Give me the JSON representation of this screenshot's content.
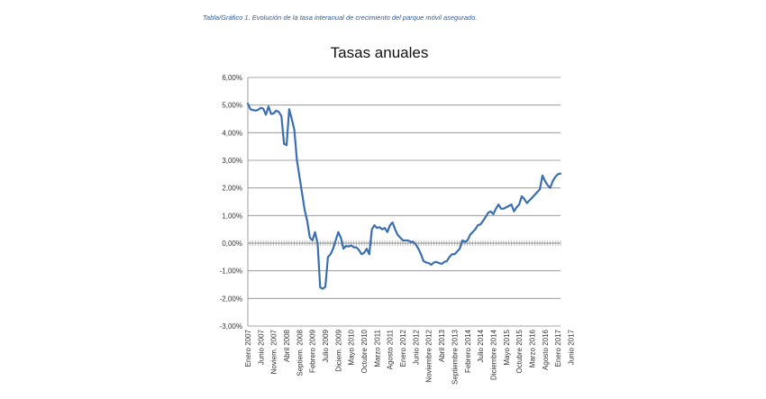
{
  "caption": "Tabla/Gráfico 1. Evolución de la tasa interanual de crecimiento del parque móvil asegurado.",
  "chart_data": {
    "type": "line",
    "title": "Tasas anuales",
    "xlabel": "",
    "ylabel": "",
    "ylim": [
      -0.03,
      0.06
    ],
    "yticks": [
      -0.03,
      -0.02,
      -0.01,
      0.0,
      0.01,
      0.02,
      0.03,
      0.04,
      0.05,
      0.06
    ],
    "ytick_labels": [
      "-3,00%",
      "-2,00%",
      "-1,00%",
      "0,00%",
      "1,00%",
      "2,00%",
      "3,00%",
      "4,00%",
      "5,00%",
      "6,00%"
    ],
    "grid": true,
    "line_color": "#3a6fb0",
    "x_labels": [
      {
        "index": 0,
        "label": "Enero 2007"
      },
      {
        "index": 5,
        "label": "Junio 2007"
      },
      {
        "index": 10,
        "label": "Noviem. 2007"
      },
      {
        "index": 15,
        "label": "Abril 2008"
      },
      {
        "index": 20,
        "label": "Septiem. 2008"
      },
      {
        "index": 25,
        "label": "Febrero 2009"
      },
      {
        "index": 30,
        "label": "Julio 2009"
      },
      {
        "index": 35,
        "label": "Diciem. 2009"
      },
      {
        "index": 40,
        "label": "Mayo 2010"
      },
      {
        "index": 45,
        "label": "Octubre 2010"
      },
      {
        "index": 50,
        "label": "Marzo 2011"
      },
      {
        "index": 55,
        "label": "Agosto 2011"
      },
      {
        "index": 60,
        "label": "Enero 2012"
      },
      {
        "index": 65,
        "label": "Junio 2012"
      },
      {
        "index": 70,
        "label": "Noviembre 2012"
      },
      {
        "index": 75,
        "label": "Abril 2013"
      },
      {
        "index": 80,
        "label": "Septiembre 2013"
      },
      {
        "index": 85,
        "label": "Febrero 2014"
      },
      {
        "index": 90,
        "label": "Julio 2014"
      },
      {
        "index": 95,
        "label": "Diciembre 2014"
      },
      {
        "index": 100,
        "label": "Mayo 2015"
      },
      {
        "index": 105,
        "label": "Octubre 2015"
      },
      {
        "index": 110,
        "label": "Marzo 2016"
      },
      {
        "index": 115,
        "label": "Agosto 2016"
      },
      {
        "index": 120,
        "label": "Enero 2017"
      },
      {
        "index": 125,
        "label": "Junio 2017"
      }
    ],
    "series": [
      {
        "values": [
          0.0505,
          0.0485,
          0.0482,
          0.048,
          0.0483,
          0.049,
          0.0487,
          0.0465,
          0.0495,
          0.0468,
          0.047,
          0.048,
          0.0475,
          0.046,
          0.036,
          0.0355,
          0.0485,
          0.045,
          0.041,
          0.03,
          0.024,
          0.018,
          0.012,
          0.008,
          0.002,
          0.001,
          0.004,
          0.0,
          -0.016,
          -0.0165,
          -0.0158,
          -0.005,
          -0.004,
          -0.002,
          0.001,
          0.004,
          0.002,
          -0.002,
          -0.001,
          -0.0012,
          -0.0008,
          -0.0015,
          -0.0015,
          -0.0025,
          -0.004,
          -0.0035,
          -0.002,
          -0.004,
          0.005,
          0.0065,
          0.0055,
          0.0058,
          0.005,
          0.0055,
          0.004,
          0.0065,
          0.0075,
          0.005,
          0.003,
          0.002,
          0.001,
          0.001,
          0.001,
          0.0005,
          0.0005,
          -0.0005,
          -0.002,
          -0.004,
          -0.0065,
          -0.007,
          -0.0072,
          -0.0078,
          -0.007,
          -0.0068,
          -0.0072,
          -0.0075,
          -0.0068,
          -0.0065,
          -0.005,
          -0.004,
          -0.004,
          -0.003,
          -0.002,
          0.001,
          0.0005,
          0.001,
          0.003,
          0.004,
          0.005,
          0.0065,
          0.0068,
          0.008,
          0.0095,
          0.011,
          0.0115,
          0.0105,
          0.0125,
          0.014,
          0.0125,
          0.0125,
          0.013,
          0.0135,
          0.014,
          0.0115,
          0.013,
          0.014,
          0.017,
          0.016,
          0.0145,
          0.0155,
          0.0165,
          0.0175,
          0.0185,
          0.0195,
          0.0245,
          0.0225,
          0.021,
          0.02,
          0.0225,
          0.024,
          0.025,
          0.0252
        ]
      }
    ]
  }
}
